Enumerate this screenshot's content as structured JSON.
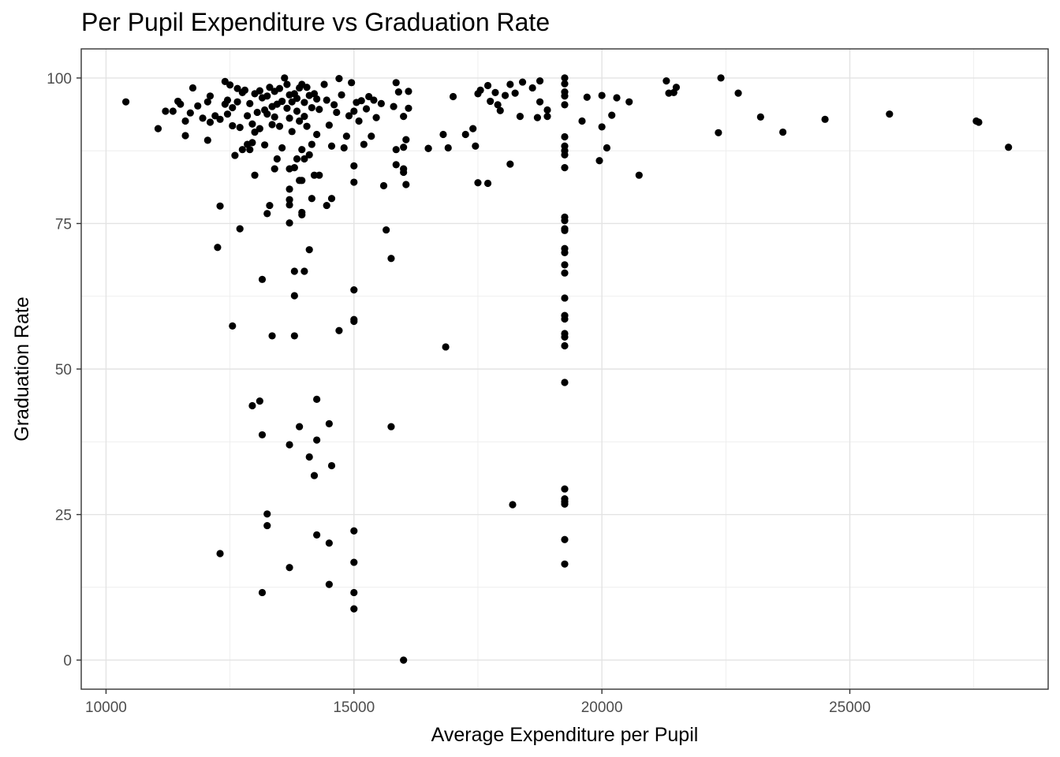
{
  "chart_data": {
    "type": "scatter",
    "title": "Per Pupil Expenditure vs Graduation Rate",
    "xlabel": "Average Expenditure per Pupil",
    "ylabel": "Graduation Rate",
    "xlim": [
      9500,
      29000
    ],
    "ylim": [
      -5,
      105
    ],
    "xticks": [
      10000,
      15000,
      20000,
      25000
    ],
    "yticks": [
      0,
      25,
      50,
      75,
      100
    ],
    "grid": true,
    "point_color": "#000000",
    "points": [
      [
        10400,
        95.9
      ],
      [
        11050,
        91.3
      ],
      [
        11200,
        94.3
      ],
      [
        11350,
        94.3
      ],
      [
        11450,
        96.0
      ],
      [
        11500,
        95.5
      ],
      [
        11600,
        92.6
      ],
      [
        11600,
        90.1
      ],
      [
        11700,
        94.0
      ],
      [
        11750,
        98.3
      ],
      [
        11850,
        95.2
      ],
      [
        11950,
        93.1
      ],
      [
        12050,
        89.3
      ],
      [
        12050,
        95.9
      ],
      [
        12100,
        96.9
      ],
      [
        12100,
        92.4
      ],
      [
        12200,
        93.5
      ],
      [
        12300,
        92.9
      ],
      [
        12400,
        99.4
      ],
      [
        12400,
        95.5
      ],
      [
        12450,
        96.2
      ],
      [
        12450,
        93.8
      ],
      [
        12500,
        98.8
      ],
      [
        12550,
        91.8
      ],
      [
        12550,
        94.9
      ],
      [
        12600,
        86.7
      ],
      [
        12650,
        98.2
      ],
      [
        12650,
        95.9
      ],
      [
        12700,
        91.5
      ],
      [
        12750,
        97.5
      ],
      [
        12750,
        87.7
      ],
      [
        12800,
        97.9
      ],
      [
        12850,
        88.6
      ],
      [
        12850,
        93.5
      ],
      [
        12900,
        95.6
      ],
      [
        12900,
        87.7
      ],
      [
        12950,
        92.1
      ],
      [
        12950,
        88.9
      ],
      [
        13000,
        97.3
      ],
      [
        13000,
        90.7
      ],
      [
        13050,
        94.1
      ],
      [
        13100,
        97.8
      ],
      [
        13100,
        91.3
      ],
      [
        13150,
        96.6
      ],
      [
        13200,
        94.5
      ],
      [
        13200,
        88.5
      ],
      [
        13250,
        96.9
      ],
      [
        13250,
        93.8
      ],
      [
        13300,
        98.4
      ],
      [
        13350,
        95.1
      ],
      [
        13350,
        92.0
      ],
      [
        13400,
        97.7
      ],
      [
        13400,
        93.3
      ],
      [
        13450,
        95.5
      ],
      [
        13450,
        86.1
      ],
      [
        13500,
        98.2
      ],
      [
        13500,
        91.7
      ],
      [
        13550,
        96.0
      ],
      [
        13550,
        88.0
      ],
      [
        13600,
        100.0
      ],
      [
        13650,
        94.8
      ],
      [
        13650,
        98.9
      ],
      [
        13700,
        97.1
      ],
      [
        13700,
        93.1
      ],
      [
        13750,
        95.9
      ],
      [
        13750,
        90.8
      ],
      [
        13800,
        97.3
      ],
      [
        13800,
        84.6
      ],
      [
        13850,
        96.5
      ],
      [
        13850,
        94.3
      ],
      [
        13900,
        98.3
      ],
      [
        13900,
        92.6
      ],
      [
        13950,
        98.9
      ],
      [
        13950,
        87.7
      ],
      [
        14000,
        95.8
      ],
      [
        14000,
        93.4
      ],
      [
        14050,
        98.4
      ],
      [
        14050,
        91.7
      ],
      [
        14100,
        97.0
      ],
      [
        14100,
        86.8
      ],
      [
        14150,
        94.9
      ],
      [
        14150,
        88.6
      ],
      [
        14200,
        97.3
      ],
      [
        14250,
        96.4
      ],
      [
        14250,
        90.3
      ],
      [
        14300,
        94.6
      ],
      [
        14400,
        98.9
      ],
      [
        14450,
        96.2
      ],
      [
        14500,
        91.9
      ],
      [
        14550,
        88.3
      ],
      [
        14600,
        95.4
      ],
      [
        14650,
        94.1
      ],
      [
        14700,
        99.9
      ],
      [
        14750,
        97.1
      ],
      [
        14800,
        88.0
      ],
      [
        14850,
        90.0
      ],
      [
        14900,
        93.5
      ],
      [
        14950,
        99.2
      ],
      [
        15000,
        94.3
      ],
      [
        15050,
        95.8
      ],
      [
        15100,
        92.6
      ],
      [
        15150,
        96.1
      ],
      [
        15200,
        88.6
      ],
      [
        15250,
        94.7
      ],
      [
        15300,
        96.8
      ],
      [
        15350,
        90.0
      ],
      [
        15400,
        96.2
      ],
      [
        15450,
        93.2
      ],
      [
        15550,
        95.6
      ],
      [
        15600,
        81.5
      ],
      [
        15800,
        95.1
      ],
      [
        15850,
        99.2
      ],
      [
        15900,
        97.6
      ],
      [
        16000,
        93.4
      ],
      [
        16000,
        88.1
      ],
      [
        16050,
        89.4
      ],
      [
        16100,
        94.8
      ],
      [
        16100,
        97.7
      ],
      [
        13850,
        86.1
      ],
      [
        14000,
        86.1
      ],
      [
        14200,
        83.3
      ],
      [
        14300,
        83.3
      ],
      [
        13400,
        84.4
      ],
      [
        13700,
        84.4
      ],
      [
        13700,
        80.9
      ],
      [
        13700,
        79.1
      ],
      [
        13700,
        78.2
      ],
      [
        13300,
        78.1
      ],
      [
        13950,
        76.9
      ],
      [
        13950,
        76.5
      ],
      [
        13250,
        76.7
      ],
      [
        12300,
        78.0
      ],
      [
        12700,
        74.1
      ],
      [
        12250,
        70.9
      ],
      [
        13000,
        83.3
      ],
      [
        13700,
        75.1
      ],
      [
        14100,
        70.5
      ],
      [
        13900,
        82.4
      ],
      [
        13950,
        82.4
      ],
      [
        14150,
        79.3
      ],
      [
        14450,
        78.1
      ],
      [
        14550,
        79.3
      ],
      [
        15000,
        84.9
      ],
      [
        15000,
        82.1
      ],
      [
        15850,
        85.1
      ],
      [
        15850,
        87.7
      ],
      [
        16000,
        84.4
      ],
      [
        16000,
        83.8
      ],
      [
        16050,
        81.7
      ],
      [
        15650,
        73.9
      ],
      [
        15750,
        69.0
      ],
      [
        13150,
        65.4
      ],
      [
        13800,
        66.8
      ],
      [
        14000,
        66.8
      ],
      [
        13800,
        62.6
      ],
      [
        12550,
        57.4
      ],
      [
        13350,
        55.7
      ],
      [
        13800,
        55.7
      ],
      [
        14700,
        56.6
      ],
      [
        15000,
        63.6
      ],
      [
        15000,
        58.5
      ],
      [
        15000,
        58.2
      ],
      [
        16500,
        87.9
      ],
      [
        16500,
        87.9
      ],
      [
        16800,
        90.3
      ],
      [
        16900,
        88.0
      ],
      [
        16850,
        53.8
      ],
      [
        17000,
        96.8
      ],
      [
        17250,
        90.3
      ],
      [
        17400,
        91.3
      ],
      [
        17450,
        88.3
      ],
      [
        17500,
        97.3
      ],
      [
        17550,
        97.9
      ],
      [
        17700,
        98.7
      ],
      [
        17750,
        96.0
      ],
      [
        17850,
        97.5
      ],
      [
        17900,
        95.4
      ],
      [
        17950,
        94.4
      ],
      [
        18050,
        97.0
      ],
      [
        18150,
        98.9
      ],
      [
        18250,
        97.4
      ],
      [
        18350,
        93.4
      ],
      [
        18400,
        99.3
      ],
      [
        18600,
        98.3
      ],
      [
        18700,
        93.2
      ],
      [
        18750,
        99.5
      ],
      [
        18750,
        95.9
      ],
      [
        18900,
        93.4
      ],
      [
        18900,
        94.5
      ],
      [
        17500,
        82.0
      ],
      [
        17700,
        81.9
      ],
      [
        18150,
        85.2
      ],
      [
        19250,
        100.0
      ],
      [
        19250,
        99.0
      ],
      [
        19250,
        97.6
      ],
      [
        19250,
        96.9
      ],
      [
        19250,
        95.4
      ],
      [
        19250,
        89.9
      ],
      [
        19250,
        88.3
      ],
      [
        19250,
        87.5
      ],
      [
        19250,
        86.8
      ],
      [
        19250,
        84.6
      ],
      [
        19250,
        76.1
      ],
      [
        19250,
        75.5
      ],
      [
        19250,
        74.1
      ],
      [
        19250,
        73.8
      ],
      [
        19250,
        70.7
      ],
      [
        19250,
        70.0
      ],
      [
        19250,
        67.9
      ],
      [
        19250,
        66.5
      ],
      [
        19250,
        62.2
      ],
      [
        19250,
        59.2
      ],
      [
        19250,
        58.6
      ],
      [
        19250,
        56.1
      ],
      [
        19250,
        55.5
      ],
      [
        19250,
        54.0
      ],
      [
        19250,
        47.7
      ],
      [
        19250,
        29.4
      ],
      [
        19250,
        27.7
      ],
      [
        19250,
        27.2
      ],
      [
        19250,
        26.8
      ],
      [
        19250,
        20.7
      ],
      [
        19250,
        16.5
      ],
      [
        19600,
        92.6
      ],
      [
        19700,
        96.7
      ],
      [
        19950,
        85.8
      ],
      [
        20000,
        91.6
      ],
      [
        20000,
        97.0
      ],
      [
        20100,
        88.0
      ],
      [
        20200,
        93.6
      ],
      [
        20300,
        96.6
      ],
      [
        20550,
        95.9
      ],
      [
        20750,
        83.3
      ],
      [
        21300,
        99.5
      ],
      [
        21350,
        97.4
      ],
      [
        21450,
        97.5
      ],
      [
        21500,
        98.4
      ],
      [
        22350,
        90.6
      ],
      [
        22400,
        100.0
      ],
      [
        22750,
        97.4
      ],
      [
        23200,
        93.3
      ],
      [
        23650,
        90.7
      ],
      [
        24500,
        92.9
      ],
      [
        25800,
        93.8
      ],
      [
        27550,
        92.6
      ],
      [
        27600,
        92.4
      ],
      [
        28200,
        88.1
      ],
      [
        12950,
        43.7
      ],
      [
        13100,
        44.5
      ],
      [
        13150,
        38.7
      ],
      [
        13900,
        40.1
      ],
      [
        13700,
        37.0
      ],
      [
        14250,
        44.8
      ],
      [
        14250,
        37.8
      ],
      [
        14100,
        34.9
      ],
      [
        14200,
        31.7
      ],
      [
        14500,
        40.6
      ],
      [
        14550,
        33.4
      ],
      [
        15750,
        40.1
      ],
      [
        13250,
        25.1
      ],
      [
        13250,
        23.1
      ],
      [
        14250,
        21.5
      ],
      [
        14500,
        20.1
      ],
      [
        12300,
        18.3
      ],
      [
        13700,
        15.9
      ],
      [
        13150,
        11.6
      ],
      [
        14500,
        13.0
      ],
      [
        15000,
        22.2
      ],
      [
        15000,
        16.8
      ],
      [
        15000,
        11.6
      ],
      [
        15000,
        8.8
      ],
      [
        16000,
        0.0
      ],
      [
        18200,
        26.7
      ]
    ]
  }
}
